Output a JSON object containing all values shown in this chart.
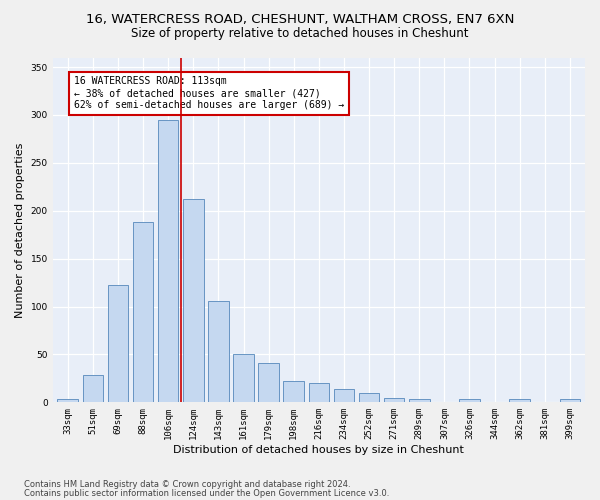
{
  "title1": "16, WATERCRESS ROAD, CHESHUNT, WALTHAM CROSS, EN7 6XN",
  "title2": "Size of property relative to detached houses in Cheshunt",
  "xlabel": "Distribution of detached houses by size in Cheshunt",
  "ylabel": "Number of detached properties",
  "categories": [
    "33sqm",
    "51sqm",
    "69sqm",
    "88sqm",
    "106sqm",
    "124sqm",
    "143sqm",
    "161sqm",
    "179sqm",
    "198sqm",
    "216sqm",
    "234sqm",
    "252sqm",
    "271sqm",
    "289sqm",
    "307sqm",
    "326sqm",
    "344sqm",
    "362sqm",
    "381sqm",
    "399sqm"
  ],
  "bar_values": [
    4,
    29,
    122,
    188,
    295,
    212,
    106,
    50,
    41,
    22,
    20,
    14,
    10,
    5,
    3,
    0,
    3,
    0,
    3,
    0,
    3
  ],
  "property_size_label": "16 WATERCRESS ROAD: 113sqm",
  "pct_smaller": 38,
  "n_smaller": 427,
  "pct_larger_semi": 62,
  "n_larger_semi": 689,
  "bar_color": "#c5d8f0",
  "bar_edge_color": "#5588bb",
  "vline_color": "#cc0000",
  "annotation_box_color": "#cc0000",
  "footer1": "Contains HM Land Registry data © Crown copyright and database right 2024.",
  "footer2": "Contains public sector information licensed under the Open Government Licence v3.0.",
  "ylim": [
    0,
    360
  ],
  "background_color": "#e8eef8",
  "grid_color": "#ffffff",
  "title1_fontsize": 9.5,
  "title2_fontsize": 8.5,
  "xlabel_fontsize": 8,
  "ylabel_fontsize": 8,
  "annotation_fontsize": 7,
  "tick_fontsize": 6.5,
  "footer_fontsize": 6
}
